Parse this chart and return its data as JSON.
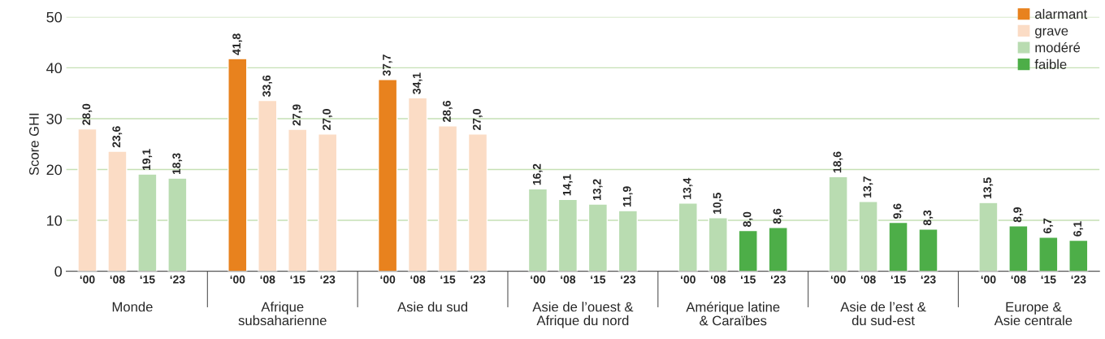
{
  "chart_data": {
    "type": "bar",
    "ylabel": "Score GHI",
    "categories": [
      "‘00",
      "‘08",
      "‘15",
      "‘23",
      null,
      "‘00",
      "‘08",
      "‘15",
      "‘23",
      null,
      "‘00",
      "‘08",
      "‘15",
      "‘23",
      null,
      "‘00",
      "‘08",
      "‘15",
      "‘23",
      null,
      "‘00",
      "‘08",
      "‘15",
      "‘23",
      null,
      "‘00",
      "‘08",
      "‘15",
      "‘23",
      null,
      "‘00",
      "‘08",
      "‘15",
      "‘23"
    ],
    "series": [
      {
        "name": "alarmant",
        "color": "#e8821e",
        "values": [
          null,
          null,
          null,
          null,
          null,
          41.8,
          null,
          null,
          null,
          null,
          37.7,
          null,
          null,
          null,
          null,
          null,
          null,
          null,
          null,
          null,
          null,
          null,
          null,
          null,
          null,
          null,
          null,
          null,
          null,
          null,
          null,
          null,
          null,
          null
        ],
        "value_labels": [
          null,
          null,
          null,
          null,
          null,
          "41,8",
          null,
          null,
          null,
          null,
          "37,7",
          null,
          null,
          null,
          null,
          null,
          null,
          null,
          null,
          null,
          null,
          null,
          null,
          null,
          null,
          null,
          null,
          null,
          null,
          null,
          null,
          null,
          null,
          null
        ]
      },
      {
        "name": "grave",
        "color": "#fbdcc5",
        "values": [
          28.0,
          23.6,
          null,
          null,
          null,
          null,
          33.6,
          27.9,
          27.0,
          null,
          null,
          34.1,
          28.6,
          27.0,
          null,
          null,
          null,
          null,
          null,
          null,
          null,
          null,
          null,
          null,
          null,
          null,
          null,
          null,
          null,
          null,
          null,
          null,
          null,
          null
        ],
        "value_labels": [
          "28,0",
          "23,6",
          null,
          null,
          null,
          null,
          "33,6",
          "27,9",
          "27,0",
          null,
          null,
          "34,1",
          "28,6",
          "27,0",
          null,
          null,
          null,
          null,
          null,
          null,
          null,
          null,
          null,
          null,
          null,
          null,
          null,
          null,
          null,
          null,
          null,
          null,
          null,
          null
        ]
      },
      {
        "name": "modéré",
        "color": "#b9dcb1",
        "values": [
          null,
          null,
          19.1,
          18.3,
          null,
          null,
          null,
          null,
          null,
          null,
          null,
          null,
          null,
          null,
          null,
          16.2,
          14.1,
          13.2,
          11.9,
          null,
          13.4,
          10.5,
          null,
          null,
          null,
          18.6,
          13.7,
          null,
          null,
          null,
          13.5,
          null,
          null,
          null
        ],
        "value_labels": [
          null,
          null,
          "19,1",
          "18,3",
          null,
          null,
          null,
          null,
          null,
          null,
          null,
          null,
          null,
          null,
          null,
          "16,2",
          "14,1",
          "13,2",
          "11,9",
          null,
          "13,4",
          "10,5",
          null,
          null,
          null,
          "18,6",
          "13,7",
          null,
          null,
          null,
          "13,5",
          null,
          null,
          null
        ]
      },
      {
        "name": "faible",
        "color": "#4dae48",
        "values": [
          null,
          null,
          null,
          null,
          null,
          null,
          null,
          null,
          null,
          null,
          null,
          null,
          null,
          null,
          null,
          null,
          null,
          null,
          null,
          null,
          null,
          null,
          8.0,
          8.6,
          null,
          null,
          null,
          9.6,
          8.3,
          null,
          null,
          8.9,
          6.7,
          6.1
        ],
        "value_labels": [
          null,
          null,
          null,
          null,
          null,
          null,
          null,
          null,
          null,
          null,
          null,
          null,
          null,
          null,
          null,
          null,
          null,
          null,
          null,
          null,
          null,
          null,
          "8,0",
          "8,6",
          null,
          null,
          null,
          "9,6",
          "8,3",
          null,
          null,
          "8,9",
          "6,7",
          "6,1"
        ]
      }
    ],
    "annotations": [
      "Monde",
      "Afrique\nsubsaharienne",
      "Asie du sud",
      "Asie de l’ouest &\nAfrique du nord",
      "Amérique latine\n& Caraïbes",
      "Asie de l’est &\ndu sud-est",
      "Europe &\nAsie centrale"
    ],
    "ylim": [
      0,
      50
    ],
    "yticks": [
      0,
      10,
      20,
      30,
      40,
      50
    ],
    "grid": "y",
    "legend": "top right"
  }
}
